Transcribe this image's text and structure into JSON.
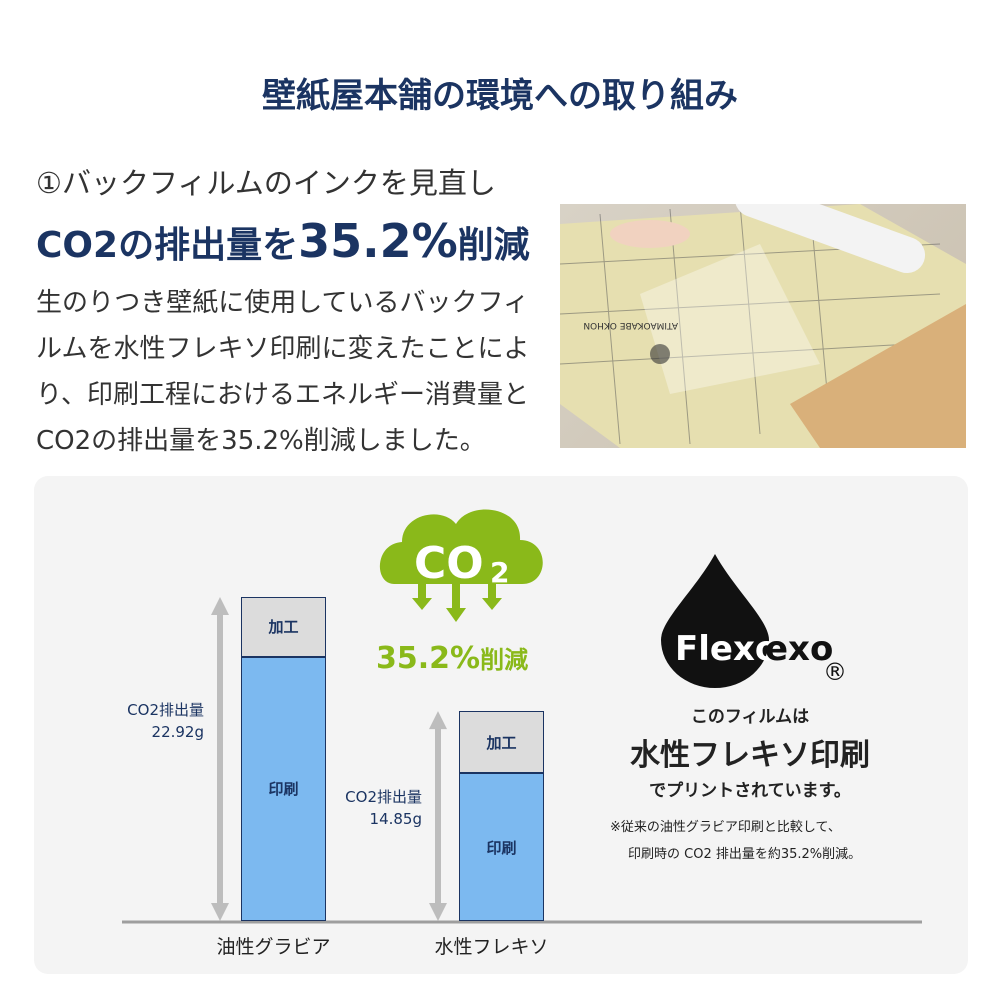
{
  "header": {
    "title": "壁紙屋本舗の環境への取り組み"
  },
  "section": {
    "subtitle": "①バックフィルムのインクを見直し",
    "headline_pre": "CO2の排出量を",
    "headline_num": "35.2%",
    "headline_post": "削減",
    "body": "生のりつき壁紙に使用しているバックフィルムを水性フレキソ印刷に変えたことにより、印刷工程におけるエネルギー消費量とCO2の排出量を35.2%削減しました。"
  },
  "photo": {
    "print_text": "ATIMAOKABE OKHON"
  },
  "cloud": {
    "label": "CO",
    "sub": "2",
    "reduction": "35.2%",
    "reduction_suffix": "削減"
  },
  "flexo": {
    "logo": "Flexo",
    "registered": "®",
    "line1": "このフィルムは",
    "line2": "水性フレキソ印刷",
    "line3": "でプリントされています。",
    "note1": "※従来の油性グラビア印刷と比較して、",
    "note2": "印刷時の CO2 排出量を約35.2%削減。"
  },
  "colors": {
    "navy": "#1b3462",
    "green": "#8ab91a",
    "print": "#7cb9f0",
    "process": "#dcdcdc",
    "panel": "#f4f4f4"
  },
  "chart_data": {
    "type": "bar",
    "stacked": true,
    "categories": [
      "油性グラビア",
      "水性フレキソ"
    ],
    "series": [
      {
        "name": "印刷",
        "values": [
          18.7,
          10.45
        ]
      },
      {
        "name": "加工",
        "values": [
          4.22,
          4.4
        ]
      }
    ],
    "totals": [
      22.92,
      14.85
    ],
    "total_labels": [
      [
        "CO2排出量",
        "22.92g"
      ],
      [
        "CO2排出量",
        "14.85g"
      ]
    ],
    "ylim": [
      0,
      22.92
    ]
  }
}
